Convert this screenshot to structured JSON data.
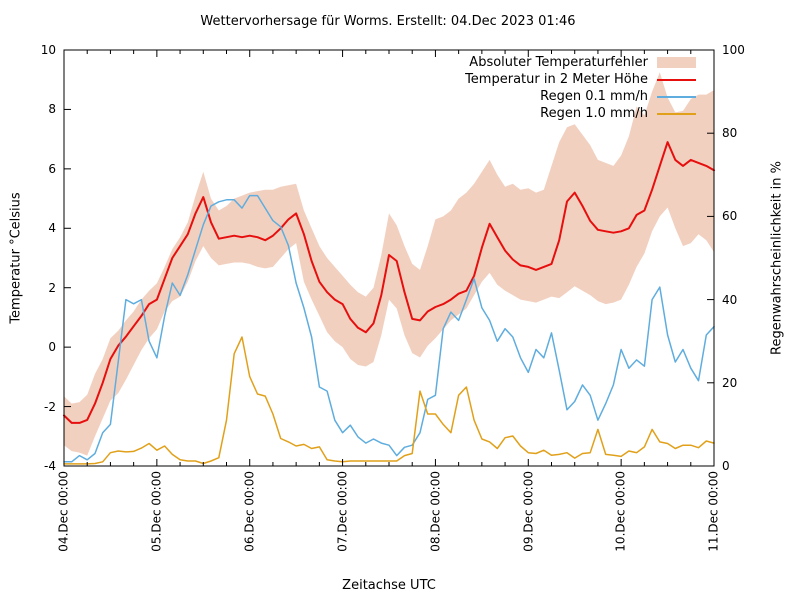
{
  "title": "Wettervorhersage für Worms. Erstellt: 04.Dec 2023 01:46",
  "colors": {
    "error_band": "#f2d0c0",
    "temperature": "#e60f0e",
    "rain_01": "#5fadde",
    "rain_10": "#e1a01a",
    "axis": "#000000",
    "background": "#ffffff"
  },
  "chart_data": {
    "type": "line",
    "title": "Wettervorhersage für Worms. Erstellt: 04.Dec 2023 01:46",
    "xlabel": "Zeitachse UTC",
    "ylabel_left": "Temperatur °Celsius",
    "ylabel_right": "Regenwahrscheinlichkeit in %",
    "ylim_left": [
      -4,
      10
    ],
    "ylim_right": [
      0,
      100
    ],
    "grid": false,
    "legend_position": "top-right-inside",
    "x_hours_total": 168,
    "x_step_hours": 2,
    "x_tick_labels": [
      "04.Dec 00:00",
      "05.Dec 00:00",
      "06.Dec 00:00",
      "07.Dec 00:00",
      "08.Dec 00:00",
      "09.Dec 00:00",
      "10.Dec 00:00",
      "11.Dec 00:00"
    ],
    "y_left_ticks": [
      "-4",
      "-2",
      "0",
      "2",
      "4",
      "6",
      "8",
      "10"
    ],
    "y_right_ticks": [
      "0",
      "20",
      "40",
      "60",
      "80",
      "100"
    ],
    "series": [
      {
        "name": "Absoluter Temperaturfehler",
        "type": "band",
        "axis": "left",
        "upper": [
          -1.65,
          -1.9,
          -1.85,
          -1.6,
          -0.9,
          -0.4,
          0.3,
          0.55,
          0.9,
          1.2,
          1.6,
          1.9,
          2.15,
          2.7,
          3.3,
          3.7,
          4.2,
          5.1,
          5.9,
          5.0,
          4.6,
          4.75,
          5.0,
          5.1,
          5.2,
          5.25,
          5.3,
          5.3,
          5.4,
          5.45,
          5.5,
          4.6,
          4.0,
          3.4,
          3.0,
          2.7,
          2.4,
          2.1,
          1.85,
          1.7,
          2.0,
          3.1,
          4.5,
          4.1,
          3.4,
          2.8,
          2.6,
          3.4,
          4.3,
          4.4,
          4.6,
          5.0,
          5.2,
          5.5,
          5.9,
          6.3,
          5.8,
          5.4,
          5.5,
          5.3,
          5.35,
          5.2,
          5.3,
          6.1,
          6.9,
          7.4,
          7.5,
          7.15,
          6.8,
          6.3,
          6.2,
          6.1,
          6.45,
          7.1,
          8.1,
          7.8,
          8.6,
          9.25,
          8.4,
          7.9,
          7.95,
          8.35,
          8.5,
          8.5,
          8.65
        ],
        "lower": [
          -3.3,
          -3.5,
          -3.55,
          -3.65,
          -3.0,
          -2.4,
          -1.8,
          -1.55,
          -1.1,
          -0.6,
          -0.1,
          0.3,
          0.6,
          1.2,
          1.55,
          1.7,
          2.2,
          2.9,
          3.4,
          3.0,
          2.75,
          2.8,
          2.85,
          2.85,
          2.8,
          2.7,
          2.65,
          2.7,
          3.0,
          3.3,
          3.5,
          2.2,
          1.6,
          1.05,
          0.5,
          0.2,
          0.0,
          -0.4,
          -0.6,
          -0.65,
          -0.5,
          0.4,
          1.6,
          1.3,
          0.4,
          -0.2,
          -0.35,
          0.05,
          0.3,
          0.6,
          0.9,
          1.1,
          1.3,
          1.75,
          2.2,
          2.5,
          2.1,
          1.9,
          1.75,
          1.6,
          1.55,
          1.5,
          1.6,
          1.7,
          1.65,
          1.85,
          2.05,
          1.9,
          1.75,
          1.55,
          1.45,
          1.5,
          1.6,
          2.1,
          2.7,
          3.15,
          3.9,
          4.4,
          4.7,
          4.0,
          3.4,
          3.5,
          3.8,
          3.6,
          3.2
        ]
      },
      {
        "name": "Temperatur in 2 Meter Höhe",
        "type": "line",
        "axis": "left",
        "values": [
          -2.3,
          -2.55,
          -2.55,
          -2.45,
          -1.9,
          -1.2,
          -0.4,
          0.05,
          0.35,
          0.7,
          1.05,
          1.45,
          1.6,
          2.3,
          3.0,
          3.4,
          3.8,
          4.5,
          5.05,
          4.2,
          3.65,
          3.7,
          3.75,
          3.7,
          3.75,
          3.7,
          3.6,
          3.75,
          4.0,
          4.3,
          4.5,
          3.8,
          2.9,
          2.2,
          1.85,
          1.6,
          1.45,
          0.95,
          0.65,
          0.5,
          0.8,
          1.75,
          3.1,
          2.9,
          1.85,
          0.95,
          0.9,
          1.2,
          1.35,
          1.45,
          1.6,
          1.8,
          1.9,
          2.4,
          3.35,
          4.15,
          3.7,
          3.25,
          2.95,
          2.75,
          2.7,
          2.6,
          2.7,
          2.8,
          3.6,
          4.9,
          5.2,
          4.75,
          4.25,
          3.95,
          3.9,
          3.85,
          3.9,
          4.0,
          4.45,
          4.6,
          5.3,
          6.1,
          6.9,
          6.3,
          6.1,
          6.3,
          6.2,
          6.1,
          5.95
        ]
      },
      {
        "name": "Regen 0.1 mm/h",
        "type": "line",
        "axis": "right",
        "values": [
          1,
          1,
          2.5,
          1.5,
          3,
          8,
          10,
          25,
          40,
          39,
          40,
          30,
          26,
          36,
          44,
          41,
          46,
          52,
          58,
          62.5,
          63.5,
          64,
          64,
          62,
          65,
          65,
          62,
          59,
          57.5,
          53,
          44,
          38,
          31,
          19,
          18,
          11,
          8,
          9.8,
          7,
          5.5,
          6.5,
          5.5,
          5,
          2.5,
          4.5,
          5,
          8,
          16,
          17,
          33,
          37,
          35,
          40,
          45,
          38,
          35,
          30,
          33,
          31,
          26,
          22.5,
          28,
          26,
          32,
          23,
          13.5,
          15.5,
          19.5,
          17,
          11,
          15,
          19.5,
          28,
          23.5,
          25.5,
          24,
          40,
          43,
          31.5,
          25,
          28,
          23.5,
          20.5,
          31.5,
          33.5
        ]
      },
      {
        "name": "Regen 1.0 mm/h",
        "type": "line",
        "axis": "right",
        "values": [
          0.5,
          0.5,
          0.5,
          0.5,
          0.6,
          1,
          3.2,
          3.6,
          3.4,
          3.5,
          4.3,
          5.4,
          3.8,
          4.8,
          2.8,
          1.5,
          1.2,
          1.2,
          0.6,
          1.2,
          2,
          11,
          27,
          31,
          21.5,
          17.3,
          16.8,
          12.5,
          6.6,
          5.8,
          4.8,
          5.2,
          4.2,
          4.6,
          1.5,
          1.2,
          1,
          1.2,
          1.2,
          1.2,
          1.2,
          1.2,
          1.2,
          1.2,
          2.5,
          3,
          18,
          12.5,
          12.5,
          10,
          8,
          17,
          19,
          11,
          6.5,
          5.8,
          4.2,
          6.8,
          7.2,
          4.8,
          3.2,
          3,
          3.8,
          2.6,
          2.8,
          3.2,
          1.9,
          3,
          3.2,
          8.8,
          2.8,
          2.6,
          2.3,
          3.6,
          3.2,
          4.6,
          8.8,
          5.8,
          5.4,
          4.2,
          5,
          5,
          4.4,
          6,
          5.5
        ]
      }
    ]
  }
}
